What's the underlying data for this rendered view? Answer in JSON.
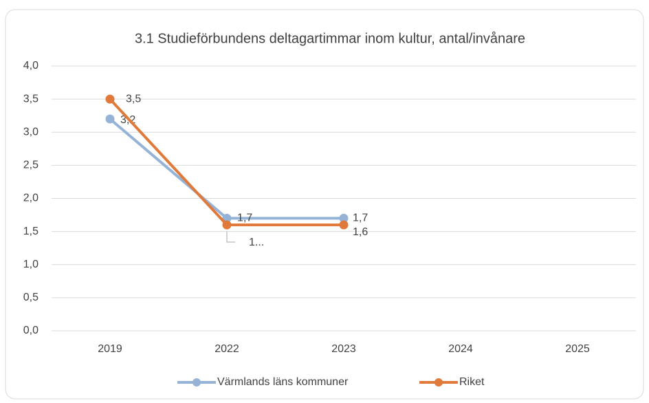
{
  "chart_data": {
    "type": "line",
    "title": "3.1 Studieförbundens deltagartimmar inom kultur, antal/invånare",
    "categories": [
      "2019",
      "2022",
      "2023",
      "2024",
      "2025"
    ],
    "series": [
      {
        "name": "Värmlands läns kommuner",
        "color": "#95b3d7",
        "values": [
          3.2,
          1.7,
          1.7,
          null,
          null
        ],
        "value_labels": [
          "3,2",
          "1,7",
          "1,7",
          null,
          null
        ]
      },
      {
        "name": "Riket",
        "color": "#e07a3b",
        "values": [
          3.5,
          1.6,
          1.6,
          null,
          null
        ],
        "value_labels": [
          "3,5",
          "1...",
          "1,6",
          null,
          null
        ]
      }
    ],
    "ylim": [
      0,
      4
    ],
    "yticks": [
      {
        "value": 0,
        "label": "0,0"
      },
      {
        "value": 0.5,
        "label": "0,5"
      },
      {
        "value": 1,
        "label": "1,0"
      },
      {
        "value": 1.5,
        "label": "1,5"
      },
      {
        "value": 2,
        "label": "2,0"
      },
      {
        "value": 2.5,
        "label": "2,5"
      },
      {
        "value": 3,
        "label": "3,0"
      },
      {
        "value": 3.5,
        "label": "3,5"
      },
      {
        "value": 4,
        "label": "4,0"
      }
    ],
    "grid": true,
    "legend": "bottom"
  }
}
